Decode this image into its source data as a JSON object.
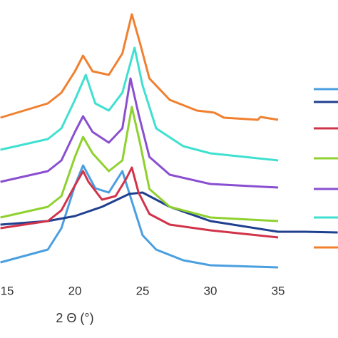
{
  "chart_data": {
    "type": "line",
    "x_label": "2 Θ (°)",
    "xlim": [
      14.47,
      39.42
    ],
    "xticks": [
      15,
      20,
      25,
      30,
      35
    ],
    "ylim": [
      0,
      100
    ],
    "series": [
      {
        "color": "#4a9fe0",
        "x": [
          14.5,
          18,
          19,
          20,
          20.6,
          21.5,
          22.5,
          23.5,
          24.5,
          25,
          26,
          28,
          30,
          35
        ],
        "values": [
          8,
          12.5,
          20,
          35,
          42,
          34,
          32.5,
          40,
          25,
          17.5,
          12.5,
          8.75,
          7,
          6.25
        ]
      },
      {
        "color": "#1f3f8f",
        "x": [
          14.5,
          18,
          20,
          22,
          24,
          25,
          26,
          27,
          30,
          35,
          37,
          39.4
        ],
        "values": [
          21.25,
          22.5,
          24.25,
          27.5,
          32,
          32.5,
          30,
          27.5,
          22.5,
          18.75,
          18.75,
          18.5
        ]
      },
      {
        "color": "#d0334a",
        "x": [
          14.5,
          18,
          19,
          20,
          20.6,
          21,
          22,
          23,
          23.8,
          24.2,
          24.7,
          25.5,
          27,
          30,
          35
        ],
        "values": [
          20,
          22.5,
          26.25,
          35,
          40,
          36.25,
          30,
          31.25,
          37.5,
          41.25,
          32.5,
          25,
          21.25,
          19.25,
          16.75
        ]
      },
      {
        "color": "#8fd12f",
        "x": [
          14.5,
          18,
          19,
          20,
          20.6,
          21.3,
          22.5,
          23.5,
          24.2,
          24.8,
          25.5,
          27,
          30,
          35
        ],
        "values": [
          23.75,
          27.5,
          31.25,
          45,
          52,
          46.25,
          40,
          43.75,
          62.5,
          50,
          33.75,
          27.5,
          23.75,
          22.5
        ]
      },
      {
        "color": "#8a4fd0",
        "x": [
          14.5,
          18,
          19,
          20,
          20.6,
          21.3,
          22.5,
          23.5,
          24.1,
          24.7,
          25.5,
          27,
          30,
          35
        ],
        "values": [
          36.25,
          40,
          43.75,
          53.75,
          59.25,
          53.75,
          50,
          55,
          72.5,
          60,
          45,
          38.75,
          35.5,
          34.25
        ]
      },
      {
        "color": "#40e0d0",
        "x": [
          14.5,
          18,
          19,
          20,
          20.8,
          21.5,
          22.5,
          23.5,
          24.4,
          25,
          26,
          28,
          30,
          35
        ],
        "values": [
          47.5,
          51.25,
          55,
          65,
          73.75,
          63.75,
          61.25,
          67.5,
          83.25,
          70,
          55,
          48.75,
          46.25,
          43.75
        ]
      },
      {
        "color": "#f08030",
        "x": [
          14.5,
          18,
          19,
          20,
          20.6,
          21.3,
          22.5,
          23.5,
          24.2,
          24.8,
          25.5,
          27,
          29,
          30.3,
          31,
          33.5,
          33.7,
          35
        ],
        "values": [
          58.75,
          63.75,
          67.5,
          75,
          80.5,
          75,
          73.75,
          81.25,
          95,
          85,
          72.5,
          65,
          61.25,
          60.5,
          58.75,
          58,
          59,
          58
        ]
      }
    ]
  }
}
